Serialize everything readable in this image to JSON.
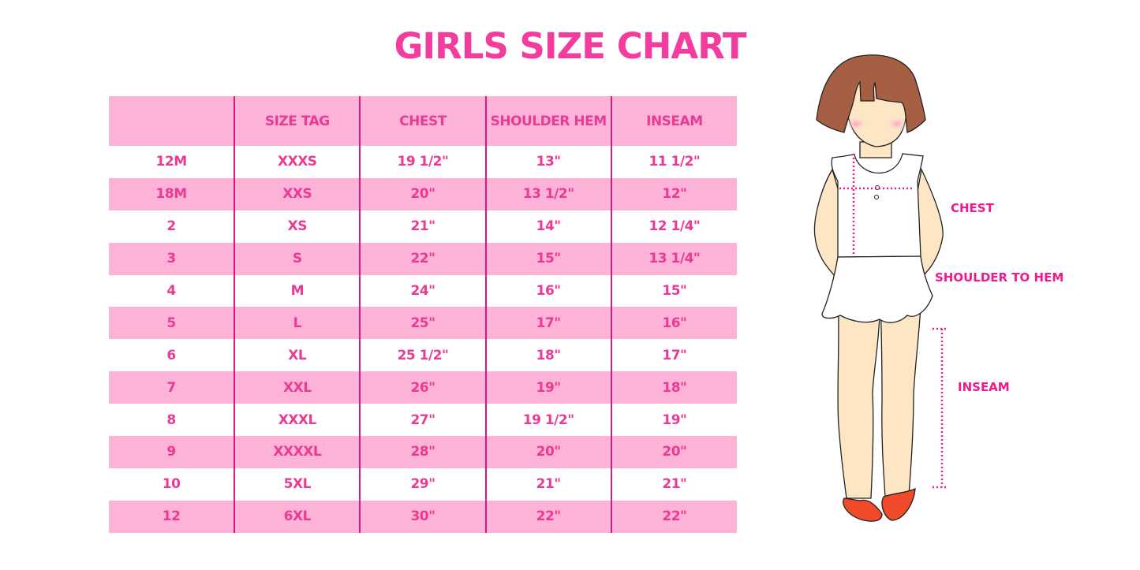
{
  "title": "GIRLS SIZE CHART",
  "chart_data": {
    "type": "table",
    "title": "GIRLS SIZE CHART",
    "columns": [
      "",
      "SIZE TAG",
      "CHEST",
      "SHOULDER HEM",
      "INSEAM"
    ],
    "rows": [
      [
        "12M",
        "XXXS",
        "19 1/2\"",
        "13\"",
        "11 1/2\""
      ],
      [
        "18M",
        "XXS",
        "20\"",
        "13 1/2\"",
        "12\""
      ],
      [
        "2",
        "XS",
        "21\"",
        "14\"",
        "12 1/4\""
      ],
      [
        "3",
        "S",
        "22\"",
        "15\"",
        "13 1/4\""
      ],
      [
        "4",
        "M",
        "24\"",
        "16\"",
        "15\""
      ],
      [
        "5",
        "L",
        "25\"",
        "17\"",
        "16\""
      ],
      [
        "6",
        "XL",
        "25 1/2\"",
        "18\"",
        "17\""
      ],
      [
        "7",
        "XXL",
        "26\"",
        "19\"",
        "18\""
      ],
      [
        "8",
        "XXXL",
        "27\"",
        "19 1/2\"",
        "19\""
      ],
      [
        "9",
        "XXXXL",
        "28\"",
        "20\"",
        "20\""
      ],
      [
        "10",
        "5XL",
        "29\"",
        "21\"",
        "21\""
      ],
      [
        "12",
        "6XL",
        "30\"",
        "22\"",
        "22\""
      ]
    ]
  },
  "figure": {
    "labels": {
      "chest": "CHEST",
      "shoulder": "SHOULDER TO HEM",
      "inseam": "INSEAM"
    }
  },
  "colors": {
    "text": "#ea3a93",
    "row_pink": "#fcb3d7",
    "divider": "#e0157f",
    "title": "#f23d9e"
  }
}
